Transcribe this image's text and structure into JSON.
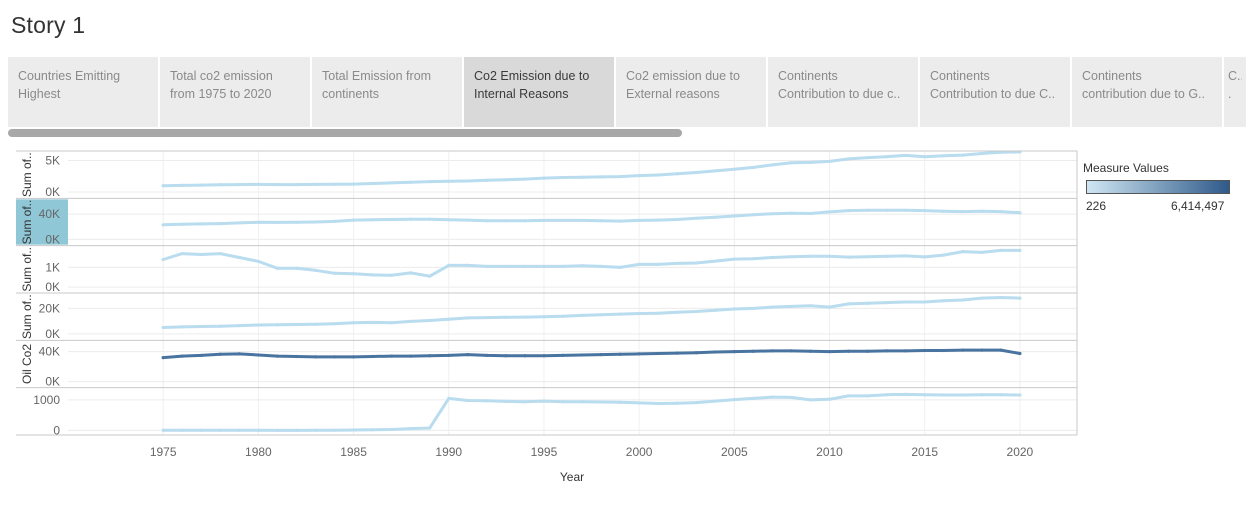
{
  "story_title": "Story 1",
  "tabs": [
    {
      "line1": "Countries Emitting",
      "line2": "Highest",
      "active": false
    },
    {
      "line1": "Total co2 emission",
      "line2": "from 1975 to 2020",
      "active": false
    },
    {
      "line1": "Total Emission from",
      "line2": "continents",
      "active": false
    },
    {
      "line1": "Co2 Emission due to",
      "line2": "Internal Reasons",
      "active": true
    },
    {
      "line1": "Co2 emission due to",
      "line2": "External reasons",
      "active": false
    },
    {
      "line1": "Continents",
      "line2": "Contribution to due c..",
      "active": false
    },
    {
      "line1": "Continents",
      "line2": "Contribution to due C..",
      "active": false
    },
    {
      "line1": "Continents",
      "line2": "contribution due to G..",
      "active": false
    },
    {
      "line1": "C..",
      "line2": ".",
      "active": false
    }
  ],
  "legend": {
    "title": "Measure Values",
    "min_label": "226",
    "max_label": "6,414,497",
    "color_low": "#cfe6f3",
    "color_high": "#2f5a8a"
  },
  "chart_data": {
    "type": "line",
    "xlabel": "Year",
    "x_ticks": [
      1975,
      1980,
      1985,
      1990,
      1995,
      2000,
      2005,
      2010,
      2015,
      2020
    ],
    "xlim": [
      1970,
      2023
    ],
    "x": [
      1975,
      1976,
      1977,
      1978,
      1979,
      1980,
      1981,
      1982,
      1983,
      1984,
      1985,
      1986,
      1987,
      1988,
      1989,
      1990,
      1991,
      1992,
      1993,
      1994,
      1995,
      1996,
      1997,
      1998,
      1999,
      2000,
      2001,
      2002,
      2003,
      2004,
      2005,
      2006,
      2007,
      2008,
      2009,
      2010,
      2011,
      2012,
      2013,
      2014,
      2015,
      2016,
      2017,
      2018,
      2019,
      2020
    ],
    "panels": [
      {
        "ylabel": "Sum of..",
        "y_ticks": [
          {
            "v": 0,
            "t": "0K"
          },
          {
            "v": 5000,
            "t": "5K"
          }
        ],
        "ylim": [
          -1000,
          6500
        ],
        "color": "#b9dcef",
        "values": [
          1000,
          1050,
          1100,
          1150,
          1180,
          1200,
          1180,
          1180,
          1200,
          1220,
          1250,
          1350,
          1450,
          1550,
          1650,
          1700,
          1750,
          1850,
          1950,
          2050,
          2200,
          2300,
          2350,
          2400,
          2450,
          2600,
          2700,
          2900,
          3100,
          3350,
          3600,
          3900,
          4300,
          4650,
          4700,
          4850,
          5250,
          5450,
          5600,
          5800,
          5600,
          5750,
          5850,
          6100,
          6300,
          6350
        ]
      },
      {
        "ylabel": "Sum of..",
        "y_ticks": [
          {
            "v": 0,
            "t": "0K"
          },
          {
            "v": 40000,
            "t": "40K"
          }
        ],
        "ylim": [
          -10000,
          65000
        ],
        "color": "#b9dcef",
        "highlight_label": true,
        "values": [
          23000,
          24000,
          24500,
          25000,
          26000,
          27000,
          26800,
          27000,
          27500,
          28500,
          30500,
          31000,
          31500,
          32000,
          32000,
          31000,
          30500,
          29500,
          29500,
          29500,
          30000,
          30000,
          30000,
          29500,
          29000,
          30000,
          30500,
          31500,
          33500,
          35000,
          37000,
          39000,
          40500,
          41500,
          41000,
          43500,
          45500,
          46000,
          46000,
          46000,
          45500,
          44500,
          44000,
          44500,
          44000,
          42000
        ]
      },
      {
        "ylabel": "Sum of..",
        "y_ticks": [
          {
            "v": 0,
            "t": "0K"
          },
          {
            "v": 1000,
            "t": "1K"
          }
        ],
        "ylim": [
          -300,
          2100
        ],
        "color": "#b9dcef",
        "values": [
          1400,
          1700,
          1650,
          1700,
          1500,
          1300,
          950,
          950,
          850,
          700,
          680,
          620,
          600,
          720,
          550,
          1100,
          1100,
          1050,
          1050,
          1050,
          1050,
          1050,
          1080,
          1050,
          1000,
          1150,
          1150,
          1200,
          1220,
          1320,
          1420,
          1440,
          1500,
          1540,
          1560,
          1560,
          1520,
          1540,
          1560,
          1580,
          1530,
          1620,
          1800,
          1760,
          1860,
          1860
        ]
      },
      {
        "ylabel": "Sum of..",
        "y_ticks": [
          {
            "v": 0,
            "t": "0K"
          },
          {
            "v": 20000,
            "t": "20K"
          }
        ],
        "ylim": [
          -5000,
          32000
        ],
        "color": "#b9dcef",
        "values": [
          5000,
          5500,
          5800,
          6000,
          6500,
          7000,
          7200,
          7400,
          7500,
          8000,
          8800,
          9000,
          8800,
          9800,
          10500,
          11500,
          12500,
          12800,
          13000,
          13200,
          13500,
          13800,
          14500,
          15000,
          15500,
          16000,
          16200,
          17000,
          17500,
          18500,
          19500,
          20000,
          21000,
          21500,
          22000,
          21000,
          23500,
          24000,
          24500,
          25000,
          25000,
          26000,
          26500,
          28000,
          28500,
          28000
        ]
      },
      {
        "ylabel": "Oil Co2",
        "y_ticks": [
          {
            "v": 0,
            "t": "0K"
          },
          {
            "v": 40000,
            "t": "40K"
          }
        ],
        "ylim": [
          -8000,
          55000
        ],
        "color": "#4a74a0",
        "values": [
          32000,
          34000,
          35000,
          36500,
          37000,
          35500,
          34000,
          33500,
          33000,
          33000,
          33000,
          33500,
          34000,
          34000,
          34500,
          35000,
          36000,
          35000,
          34500,
          34500,
          34500,
          35000,
          35500,
          36000,
          36500,
          37000,
          37500,
          38000,
          38500,
          39500,
          40000,
          40500,
          41000,
          41000,
          40500,
          40000,
          40500,
          40500,
          41000,
          41000,
          41500,
          41500,
          42000,
          42000,
          42000,
          37500
        ]
      },
      {
        "ylabel": "",
        "y_ticks": [
          {
            "v": 0,
            "t": "0"
          },
          {
            "v": 1000,
            "t": "1000"
          }
        ],
        "ylim": [
          -150,
          1400
        ],
        "color": "#b9dcef",
        "values": [
          5,
          5,
          5,
          5,
          5,
          3,
          2,
          2,
          3,
          8,
          15,
          20,
          30,
          60,
          80,
          1050,
          980,
          970,
          950,
          940,
          960,
          940,
          940,
          930,
          920,
          900,
          880,
          890,
          910,
          960,
          1010,
          1050,
          1090,
          1080,
          1000,
          1020,
          1130,
          1130,
          1170,
          1180,
          1170,
          1160,
          1160,
          1170,
          1170,
          1160
        ]
      }
    ]
  }
}
